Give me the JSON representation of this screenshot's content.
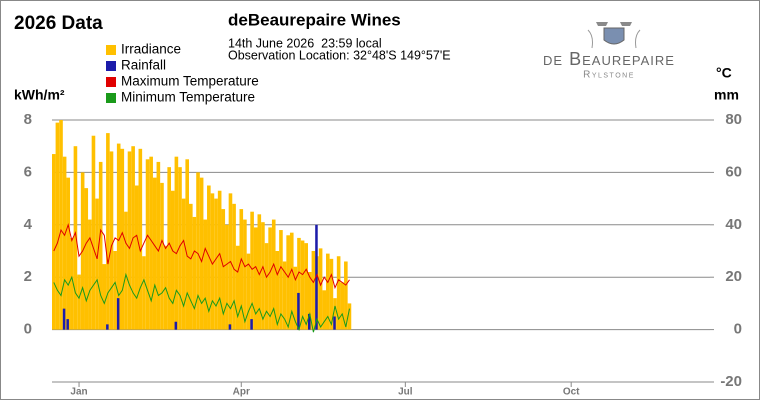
{
  "logo": {
    "name": "de Beaurepaire",
    "place": "Rylstone"
  },
  "chart_data": {
    "type": "bar",
    "heading": "2026 Data",
    "title": "deBeaurepaire Wines",
    "subtitle": [
      "14th June 2026  23:59 local",
      "Observation Location: 32°48'S 149°57'E"
    ],
    "ylabel": "kWh/m²",
    "y2label": [
      "°C",
      "mm"
    ],
    "x": [
      1,
      3,
      5,
      7,
      9,
      11,
      13,
      15,
      17,
      19,
      21,
      23,
      25,
      27,
      29,
      31,
      33,
      35,
      37,
      39,
      41,
      43,
      45,
      47,
      49,
      51,
      53,
      55,
      57,
      59,
      61,
      63,
      65,
      67,
      69,
      71,
      73,
      75,
      77,
      79,
      81,
      83,
      85,
      87,
      89,
      91,
      93,
      95,
      97,
      99,
      101,
      103,
      105,
      107,
      109,
      111,
      113,
      115,
      117,
      119,
      121,
      123,
      125,
      127,
      129,
      131,
      133,
      135,
      137,
      139,
      141,
      143,
      145,
      147,
      149,
      151,
      153,
      155,
      157,
      159,
      161,
      163,
      165
    ],
    "xlim": [
      0,
      365
    ],
    "xticks": [
      {
        "value": 15,
        "label": "Jan"
      },
      {
        "value": 105,
        "label": "Apr"
      },
      {
        "value": 196,
        "label": "Jul"
      },
      {
        "value": 288,
        "label": "Oct"
      }
    ],
    "ylim": [
      -2,
      8
    ],
    "yticks": [
      0,
      2,
      4,
      6,
      8
    ],
    "y2lim": [
      -20,
      80
    ],
    "y2ticks": [
      -20,
      0,
      20,
      40,
      60,
      80
    ],
    "grid": true,
    "series": [
      {
        "name": "Irradiance",
        "type": "bar",
        "color": "#ffc000",
        "values": [
          6.7,
          7.9,
          8.0,
          6.6,
          5.8,
          3.5,
          7.0,
          2.1,
          6.0,
          5.4,
          4.2,
          7.4,
          5.0,
          6.4,
          2.5,
          7.5,
          6.8,
          3.0,
          7.1,
          6.9,
          4.5,
          6.8,
          7.0,
          5.5,
          6.9,
          2.8,
          6.5,
          6.6,
          5.8,
          6.4,
          5.6,
          3.2,
          6.2,
          5.3,
          6.6,
          6.2,
          5.0,
          6.5,
          4.8,
          4.3,
          6.0,
          5.8,
          4.2,
          5.5,
          5.2,
          5.0,
          5.3,
          4.6,
          4.0,
          5.2,
          4.8,
          3.2,
          4.6,
          4.2,
          2.9,
          4.5,
          3.9,
          4.4,
          4.1,
          3.3,
          3.9,
          4.2,
          3.0,
          3.8,
          2.6,
          3.6,
          3.7,
          2.4,
          3.5,
          3.4,
          3.3,
          2.2,
          3.0,
          2.8,
          3.1,
          1.5,
          2.9,
          2.7,
          1.2,
          2.8,
          1.8,
          2.6,
          1.0
        ]
      },
      {
        "name": "Rainfall",
        "type": "bar",
        "axis": "y2",
        "color": "#1c1caa",
        "values": [
          0,
          0,
          0,
          8,
          4,
          0,
          0,
          0,
          0,
          0,
          0,
          0,
          0,
          0,
          0,
          2,
          0,
          0,
          12,
          0,
          0,
          0,
          0,
          0,
          0,
          0,
          0,
          0,
          0,
          0,
          0,
          0,
          0,
          0,
          3,
          0,
          0,
          0,
          0,
          0,
          0,
          0,
          0,
          0,
          0,
          0,
          0,
          0,
          0,
          2,
          0,
          0,
          0,
          0,
          0,
          4,
          0,
          0,
          0,
          0,
          0,
          0,
          0,
          0,
          0,
          0,
          0,
          0,
          14,
          0,
          0,
          6,
          0,
          40,
          0,
          0,
          0,
          0,
          5,
          0,
          0,
          0,
          0
        ]
      },
      {
        "name": "Maximum Temperature",
        "type": "line",
        "axis": "y2",
        "color": "#e00000",
        "values": [
          30,
          33,
          38,
          36,
          40,
          34,
          37,
          28,
          30,
          33,
          35,
          31,
          27,
          38,
          36,
          25,
          32,
          35,
          34,
          37,
          33,
          31,
          35,
          36,
          30,
          33,
          36,
          34,
          32,
          30,
          34,
          31,
          33,
          30,
          29,
          32,
          34,
          28,
          27,
          30,
          29,
          26,
          31,
          28,
          25,
          27,
          29,
          24,
          25,
          26,
          23,
          22,
          27,
          24,
          25,
          23,
          24,
          21,
          24,
          20,
          22,
          25,
          21,
          24,
          22,
          20,
          23,
          19,
          22,
          21,
          23,
          20,
          18,
          21,
          17,
          20,
          18,
          21,
          16,
          19,
          18,
          17,
          19
        ]
      },
      {
        "name": "Minimum Temperature",
        "type": "line",
        "axis": "y2",
        "color": "#1a9a1a",
        "values": [
          18,
          15,
          13,
          19,
          17,
          20,
          14,
          12,
          16,
          11,
          15,
          17,
          19,
          13,
          10,
          14,
          16,
          18,
          13,
          15,
          21,
          17,
          14,
          12,
          16,
          19,
          15,
          11,
          17,
          13,
          14,
          16,
          12,
          10,
          15,
          13,
          9,
          14,
          11,
          8,
          13,
          10,
          12,
          7,
          11,
          9,
          12,
          6,
          10,
          8,
          11,
          5,
          9,
          3,
          7,
          10,
          6,
          8,
          4,
          7,
          5,
          8,
          2,
          6,
          4,
          1,
          7,
          3,
          0,
          5,
          2,
          6,
          -1,
          4,
          1,
          3,
          5,
          2,
          9,
          4,
          6,
          1,
          8
        ]
      }
    ]
  }
}
